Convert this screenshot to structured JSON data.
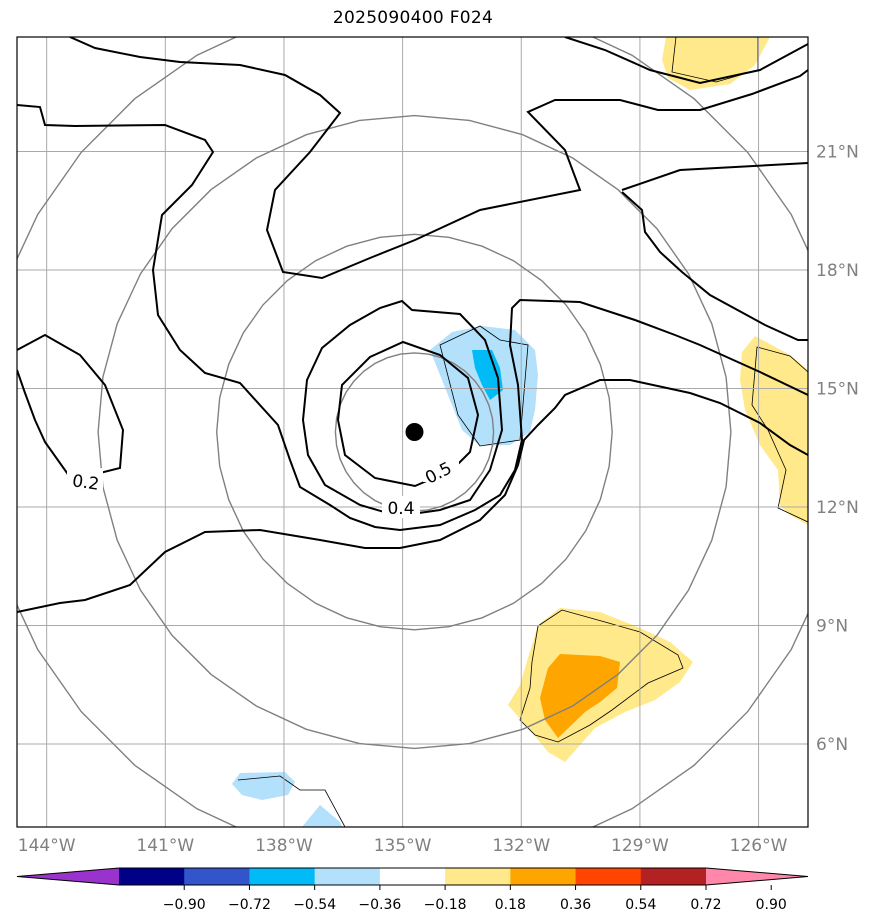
{
  "chart_data": {
    "type": "contour",
    "title": "2025090400 F024",
    "storm_center": {
      "lon": -134.7,
      "lat": 13.9
    },
    "x_ticks": [
      "144°W",
      "141°W",
      "138°W",
      "135°W",
      "132°W",
      "129°W",
      "126°W"
    ],
    "x_tick_values": [
      -144,
      -141,
      -138,
      -135,
      -132,
      -129,
      -126
    ],
    "y_ticks": [
      "6°N",
      "9°N",
      "12°N",
      "15°N",
      "18°N",
      "21°N"
    ],
    "y_tick_values": [
      6,
      9,
      12,
      15,
      18,
      21
    ],
    "lon_range": [
      -144.75,
      -124.75
    ],
    "lat_range": [
      3.9,
      23.9
    ],
    "contour_labels": [
      {
        "text": "0.2",
        "lon": -143.0,
        "lat": 12.7
      },
      {
        "text": "0.5",
        "lon": -134.1,
        "lat": 12.9
      },
      {
        "text": "0.4",
        "lon": -135.0,
        "lat": 11.9
      }
    ],
    "range_ring_radii_deg": [
      2,
      5,
      8,
      11
    ],
    "colorbar": {
      "ticks": [
        "−0.90",
        "−0.72",
        "−0.54",
        "−0.36",
        "−0.18",
        "0.18",
        "0.36",
        "0.54",
        "0.72",
        "0.90"
      ],
      "colors": [
        "#9933cc",
        "#000088",
        "#3355cc",
        "#00bbf5",
        "#b3e0fb",
        "#ffffff",
        "#ffe98a",
        "#ffa500",
        "#ff4500",
        "#b22222",
        "#ff88aa"
      ],
      "extend": "both"
    }
  }
}
